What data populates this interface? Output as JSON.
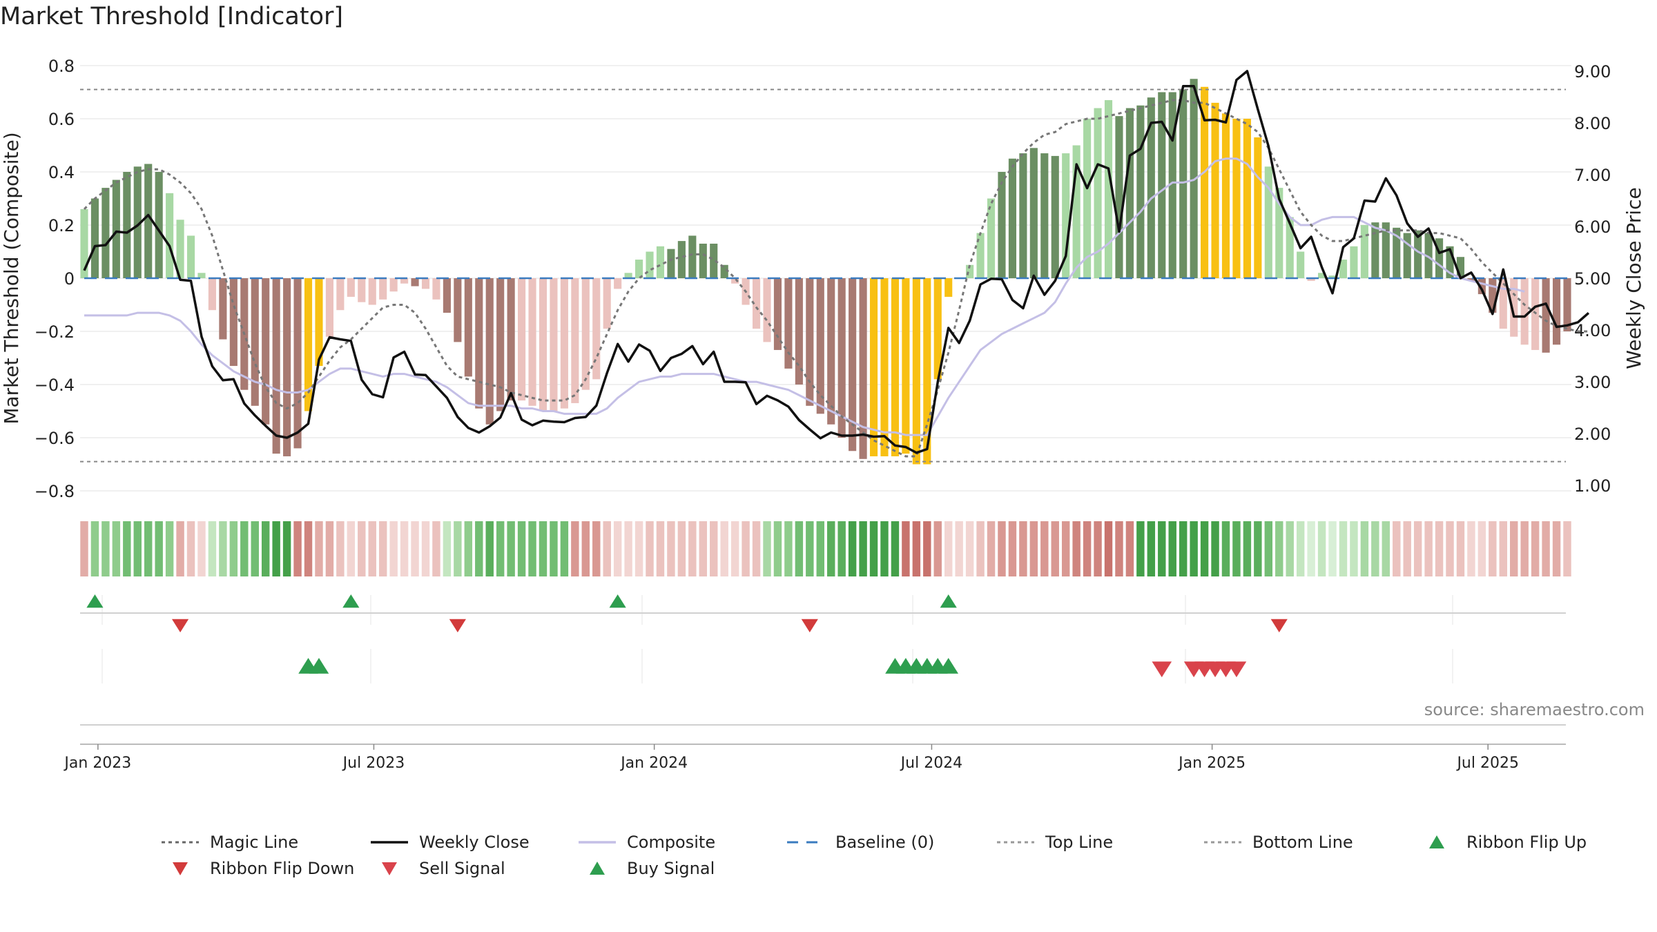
{
  "title": "Market Threshold [Indicator]",
  "source": "source: sharemaestro.com",
  "colors": {
    "bar_dark_green": "#6b8f63",
    "bar_light_green": "#a8d8a4",
    "bar_dark_red": "#a87a72",
    "bar_light_red": "#ebc2be",
    "bar_gold": "#f8c013",
    "magic_line": "#777777",
    "weekly_close": "#111111",
    "composite": "#c4bfe6",
    "baseline": "#3a7bbf",
    "threshold_lines": "#888888",
    "buy": "#2e9e4f",
    "sell": "#d9434b",
    "grid": "#e8e8e8"
  },
  "legend": [
    {
      "label": "Magic Line",
      "icon": "dotted-line"
    },
    {
      "label": "Weekly Close",
      "icon": "solid-line"
    },
    {
      "label": "Composite",
      "icon": "purple-line"
    },
    {
      "label": "Baseline (0)",
      "icon": "dashed-line"
    },
    {
      "label": "Top Line",
      "icon": "dotted-line"
    },
    {
      "label": "Bottom Line",
      "icon": "dotted-line"
    },
    {
      "label": "Ribbon Flip Up",
      "icon": "triangle-up"
    },
    {
      "label": "Ribbon Flip Down",
      "icon": "triangle-down"
    },
    {
      "label": "Sell Signal",
      "icon": "triangle-down"
    },
    {
      "label": "Buy Signal",
      "icon": "triangle-up"
    }
  ],
  "chart_data": {
    "type": "bar",
    "title": "Market Threshold [Indicator]",
    "ylabel_left": "Market Threshold (Composite)",
    "ylabel_right": "Weekly Close Price",
    "ylim_left": [
      -0.8,
      0.8
    ],
    "yticks_left": [
      "0.8",
      "0.6",
      "0.4",
      "0.2",
      "0",
      "−0.2",
      "−0.4",
      "−0.6",
      "−0.8"
    ],
    "ylim_right": [
      1.0,
      9.0
    ],
    "yticks_right": [
      "9.00",
      "8.00",
      "7.00",
      "6.00",
      "5.00",
      "4.00",
      "3.00",
      "2.00",
      "1.00"
    ],
    "x_start": "2022-12-23",
    "x_step_days": 7,
    "x_ticks": [
      {
        "date": "2023-01-01",
        "label": "Jan 2023"
      },
      {
        "date": "2023-07-01",
        "label": "Jul 2023"
      },
      {
        "date": "2024-01-01",
        "label": "Jan 2024"
      },
      {
        "date": "2024-07-01",
        "label": "Jul 2024"
      },
      {
        "date": "2025-01-01",
        "label": "Jan 2025"
      },
      {
        "date": "2025-07-01",
        "label": "Jul 2025"
      }
    ],
    "top_line": 0.71,
    "bottom_line": -0.69,
    "baseline": 0,
    "histogram": [
      0.26,
      0.3,
      0.34,
      0.37,
      0.4,
      0.42,
      0.43,
      0.4,
      0.32,
      0.22,
      0.16,
      0.02,
      -0.12,
      -0.23,
      -0.33,
      -0.42,
      -0.48,
      -0.55,
      -0.66,
      -0.67,
      -0.64,
      -0.5,
      -0.33,
      -0.22,
      -0.12,
      -0.07,
      -0.09,
      -0.1,
      -0.08,
      -0.05,
      -0.02,
      -0.03,
      -0.04,
      -0.08,
      -0.13,
      -0.24,
      -0.37,
      -0.49,
      -0.55,
      -0.5,
      -0.46,
      -0.46,
      -0.48,
      -0.5,
      -0.5,
      -0.49,
      -0.47,
      -0.42,
      -0.38,
      -0.19,
      -0.04,
      0.02,
      0.07,
      0.1,
      0.12,
      0.11,
      0.14,
      0.16,
      0.13,
      0.13,
      0.05,
      -0.02,
      -0.1,
      -0.19,
      -0.24,
      -0.27,
      -0.34,
      -0.4,
      -0.48,
      -0.51,
      -0.55,
      -0.6,
      -0.65,
      -0.68,
      -0.67,
      -0.67,
      -0.67,
      -0.66,
      -0.7,
      -0.7,
      -0.38,
      -0.07,
      0.0,
      0.05,
      0.17,
      0.3,
      0.4,
      0.45,
      0.47,
      0.49,
      0.47,
      0.46,
      0.47,
      0.5,
      0.6,
      0.64,
      0.67,
      0.61,
      0.64,
      0.65,
      0.68,
      0.7,
      0.7,
      0.71,
      0.75,
      0.72,
      0.66,
      0.62,
      0.6,
      0.6,
      0.53,
      0.42,
      0.34,
      0.23,
      0.1,
      -0.01,
      0.02,
      0.01,
      0.07,
      0.12,
      0.2,
      0.21,
      0.21,
      0.19,
      0.17,
      0.18,
      0.17,
      0.15,
      0.12,
      0.08,
      -0.01,
      -0.06,
      -0.13,
      -0.19,
      -0.22,
      -0.25,
      -0.27,
      -0.28,
      -0.25,
      -0.2
    ],
    "histogram_color_codes": "LDDDDDDDLLLLLRRRRRRRRGGLLLLLLLLRLLRRRRRRRLLLLLLLLLLLLLLDDDDDDLLLLRRRRRRRRRGGGGGGGGLLLLDDDDDDLLLLLDDDDDDDDGGGGGGLLLLLLLLLLDDDDDDDDDDDDLLLLRRRRRRRRL",
    "weekly_close": [
      5.15,
      5.62,
      5.64,
      5.9,
      5.88,
      6.02,
      6.22,
      5.92,
      5.62,
      4.97,
      4.95,
      3.87,
      3.3,
      3.03,
      3.05,
      2.58,
      2.35,
      2.15,
      1.96,
      1.92,
      2.02,
      2.19,
      3.43,
      3.86,
      3.82,
      3.79,
      3.04,
      2.76,
      2.7,
      3.47,
      3.58,
      3.14,
      3.13,
      2.91,
      2.69,
      2.32,
      2.11,
      2.02,
      2.14,
      2.31,
      2.78,
      2.27,
      2.16,
      2.25,
      2.23,
      2.22,
      2.3,
      2.32,
      2.54,
      3.17,
      3.73,
      3.39,
      3.72,
      3.6,
      3.21,
      3.46,
      3.54,
      3.69,
      3.34,
      3.58,
      3.0,
      3.0,
      2.99,
      2.57,
      2.73,
      2.64,
      2.52,
      2.26,
      2.08,
      1.91,
      2.02,
      1.96,
      1.96,
      1.98,
      1.94,
      1.95,
      1.77,
      1.74,
      1.63,
      1.7,
      3.0,
      4.04,
      3.75,
      4.18,
      4.88,
      4.99,
      4.98,
      4.58,
      4.42,
      5.05,
      4.68,
      4.95,
      5.43,
      7.2,
      6.74,
      7.2,
      7.12,
      5.9,
      7.37,
      7.5,
      8.0,
      8.02,
      7.66,
      8.71,
      8.71,
      8.05,
      8.06,
      8.01,
      8.83,
      9.0,
      8.26,
      7.55,
      6.53,
      6.06,
      5.58,
      5.8,
      5.21,
      4.71,
      5.6,
      5.77,
      6.5,
      6.48,
      6.93,
      6.6,
      6.06,
      5.8,
      5.96,
      5.49,
      5.56,
      5.0,
      5.11,
      4.78,
      4.31,
      5.17,
      4.26,
      4.26,
      4.45,
      4.51,
      4.06,
      4.09,
      4.15,
      4.33
    ],
    "magic_line": [
      0.26,
      0.3,
      0.33,
      0.36,
      0.38,
      0.4,
      0.41,
      0.41,
      0.39,
      0.36,
      0.32,
      0.26,
      0.16,
      0.03,
      -0.1,
      -0.21,
      -0.32,
      -0.41,
      -0.47,
      -0.49,
      -0.47,
      -0.43,
      -0.37,
      -0.31,
      -0.26,
      -0.23,
      -0.19,
      -0.15,
      -0.11,
      -0.1,
      -0.1,
      -0.13,
      -0.19,
      -0.26,
      -0.33,
      -0.37,
      -0.38,
      -0.39,
      -0.4,
      -0.41,
      -0.43,
      -0.44,
      -0.45,
      -0.46,
      -0.46,
      -0.46,
      -0.44,
      -0.38,
      -0.3,
      -0.21,
      -0.12,
      -0.05,
      0.0,
      0.03,
      0.05,
      0.07,
      0.08,
      0.09,
      0.09,
      0.07,
      0.04,
      0.0,
      -0.05,
      -0.11,
      -0.16,
      -0.22,
      -0.28,
      -0.33,
      -0.39,
      -0.44,
      -0.48,
      -0.52,
      -0.55,
      -0.58,
      -0.61,
      -0.63,
      -0.65,
      -0.67,
      -0.67,
      -0.55,
      -0.42,
      -0.28,
      -0.12,
      0.05,
      0.17,
      0.28,
      0.36,
      0.42,
      0.47,
      0.51,
      0.54,
      0.55,
      0.58,
      0.59,
      0.6,
      0.6,
      0.61,
      0.62,
      0.63,
      0.64,
      0.65,
      0.66,
      0.67,
      0.67,
      0.66,
      0.66,
      0.64,
      0.62,
      0.6,
      0.58,
      0.55,
      0.49,
      0.41,
      0.33,
      0.25,
      0.2,
      0.16,
      0.14,
      0.14,
      0.15,
      0.16,
      0.17,
      0.18,
      0.18,
      0.18,
      0.18,
      0.17,
      0.17,
      0.16,
      0.15,
      0.11,
      0.06,
      0.02,
      -0.02,
      -0.06,
      -0.1,
      -0.13,
      -0.16,
      -0.18,
      -0.19,
      -0.2,
      -0.2
    ],
    "composite": [
      -0.14,
      -0.14,
      -0.14,
      -0.14,
      -0.14,
      -0.13,
      -0.13,
      -0.13,
      -0.14,
      -0.16,
      -0.2,
      -0.25,
      -0.29,
      -0.32,
      -0.35,
      -0.37,
      -0.39,
      -0.4,
      -0.42,
      -0.43,
      -0.43,
      -0.42,
      -0.39,
      -0.36,
      -0.34,
      -0.34,
      -0.35,
      -0.36,
      -0.37,
      -0.36,
      -0.36,
      -0.37,
      -0.38,
      -0.39,
      -0.41,
      -0.44,
      -0.47,
      -0.48,
      -0.48,
      -0.48,
      -0.48,
      -0.49,
      -0.49,
      -0.5,
      -0.5,
      -0.51,
      -0.51,
      -0.51,
      -0.51,
      -0.49,
      -0.45,
      -0.42,
      -0.39,
      -0.38,
      -0.37,
      -0.37,
      -0.36,
      -0.36,
      -0.36,
      -0.36,
      -0.37,
      -0.38,
      -0.39,
      -0.39,
      -0.4,
      -0.41,
      -0.42,
      -0.44,
      -0.46,
      -0.48,
      -0.5,
      -0.52,
      -0.54,
      -0.56,
      -0.57,
      -0.58,
      -0.58,
      -0.59,
      -0.59,
      -0.59,
      -0.52,
      -0.45,
      -0.39,
      -0.33,
      -0.27,
      -0.24,
      -0.21,
      -0.19,
      -0.17,
      -0.15,
      -0.13,
      -0.09,
      -0.02,
      0.04,
      0.08,
      0.1,
      0.13,
      0.17,
      0.21,
      0.25,
      0.3,
      0.33,
      0.36,
      0.36,
      0.37,
      0.4,
      0.44,
      0.45,
      0.45,
      0.43,
      0.38,
      0.34,
      0.28,
      0.23,
      0.2,
      0.2,
      0.22,
      0.23,
      0.23,
      0.23,
      0.21,
      0.19,
      0.18,
      0.16,
      0.13,
      0.1,
      0.08,
      0.05,
      0.02,
      0.0,
      -0.01,
      -0.02,
      -0.03,
      -0.04,
      -0.04,
      -0.05
    ],
    "ribbon_shades": "011111111000111111110000000000000011111111111100000000000000000011111111111110000000000000000000000111111111111111111111111000000000000000000000000000000",
    "ribbon_up_intensity": [
      0.1,
      0.5,
      0.55,
      0.55,
      0.5,
      0.5,
      0.45,
      0.45,
      0.4,
      0.35,
      0.3,
      0.25,
      0,
      0,
      0,
      0,
      0,
      0,
      0,
      0,
      0,
      0,
      0,
      0,
      0,
      0,
      0,
      0.35,
      0.4,
      0.45,
      0.45,
      0.45,
      0.45,
      0.45,
      0.4,
      0.4,
      0.35,
      0.3
    ],
    "ribbon_flip_up": [
      "2022-12-30",
      "2023-06-16",
      "2023-12-08",
      "2024-07-12"
    ],
    "ribbon_flip_down": [
      "2023-02-24",
      "2023-08-25",
      "2024-04-12",
      "2025-02-14"
    ],
    "buy_signal": [
      "2023-05-19",
      "2023-05-26",
      "2024-06-07",
      "2024-06-14",
      "2024-06-21",
      "2024-06-28",
      "2024-07-05",
      "2024-07-12"
    ],
    "sell_signal": [
      "2024-11-29",
      "2024-12-20",
      "2024-12-27",
      "2025-01-03",
      "2025-01-10",
      "2025-01-17"
    ]
  }
}
